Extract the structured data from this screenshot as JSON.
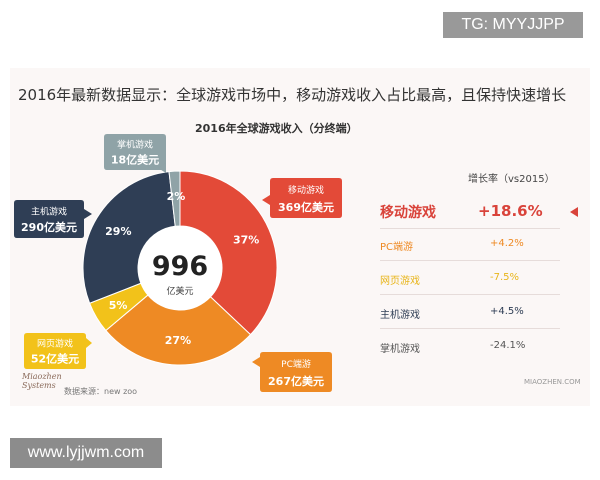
{
  "headline": "2016年最新数据显示：全球游戏市场中，移动游戏收入占比最高，且保持快速增长",
  "watermarks": {
    "top": "TG: MYYJJPP",
    "bottom": "www.lyjjwm.com"
  },
  "chart_data": {
    "type": "pie",
    "title": "2016年全球游戏收入（分终端）",
    "center_value": "996",
    "center_unit": "亿美元",
    "slices": [
      {
        "name": "移动游戏",
        "value": 369,
        "value_label": "369亿美元",
        "percent_label": "37%",
        "color": "#e34a38"
      },
      {
        "name": "PC端游",
        "value": 267,
        "value_label": "267亿美元",
        "percent_label": "27%",
        "color": "#ee8a24"
      },
      {
        "name": "网页游戏",
        "value": 52,
        "value_label": "52亿美元",
        "percent_label": "5%",
        "color": "#f2c21a"
      },
      {
        "name": "主机游戏",
        "value": 290,
        "value_label": "290亿美元",
        "percent_label": "29%",
        "color": "#2f3e55"
      },
      {
        "name": "掌机游戏",
        "value": 18,
        "value_label": "18亿美元",
        "percent_label": "2%",
        "color": "#8fa3a7"
      }
    ]
  },
  "growth_table": {
    "header": "增长率（vs2015）",
    "rows": [
      {
        "label": "移动游戏",
        "value": "+18.6%",
        "color": "#d9433a",
        "highlight": true
      },
      {
        "label": "PC端游",
        "value": "+4.2%",
        "color": "#ee8a24",
        "highlight": false
      },
      {
        "label": "网页游戏",
        "value": "-7.5%",
        "color": "#e8b51a",
        "highlight": false
      },
      {
        "label": "主机游戏",
        "value": "+4.5%",
        "color": "#2f3e55",
        "highlight": false
      },
      {
        "label": "掌机游戏",
        "value": "-24.1%",
        "color": "#555555",
        "highlight": false
      }
    ]
  },
  "footer": {
    "logo_text": "Miaozhen Systems",
    "source": "数据来源：new zoo",
    "site": "MIAOZHEN.COM"
  }
}
